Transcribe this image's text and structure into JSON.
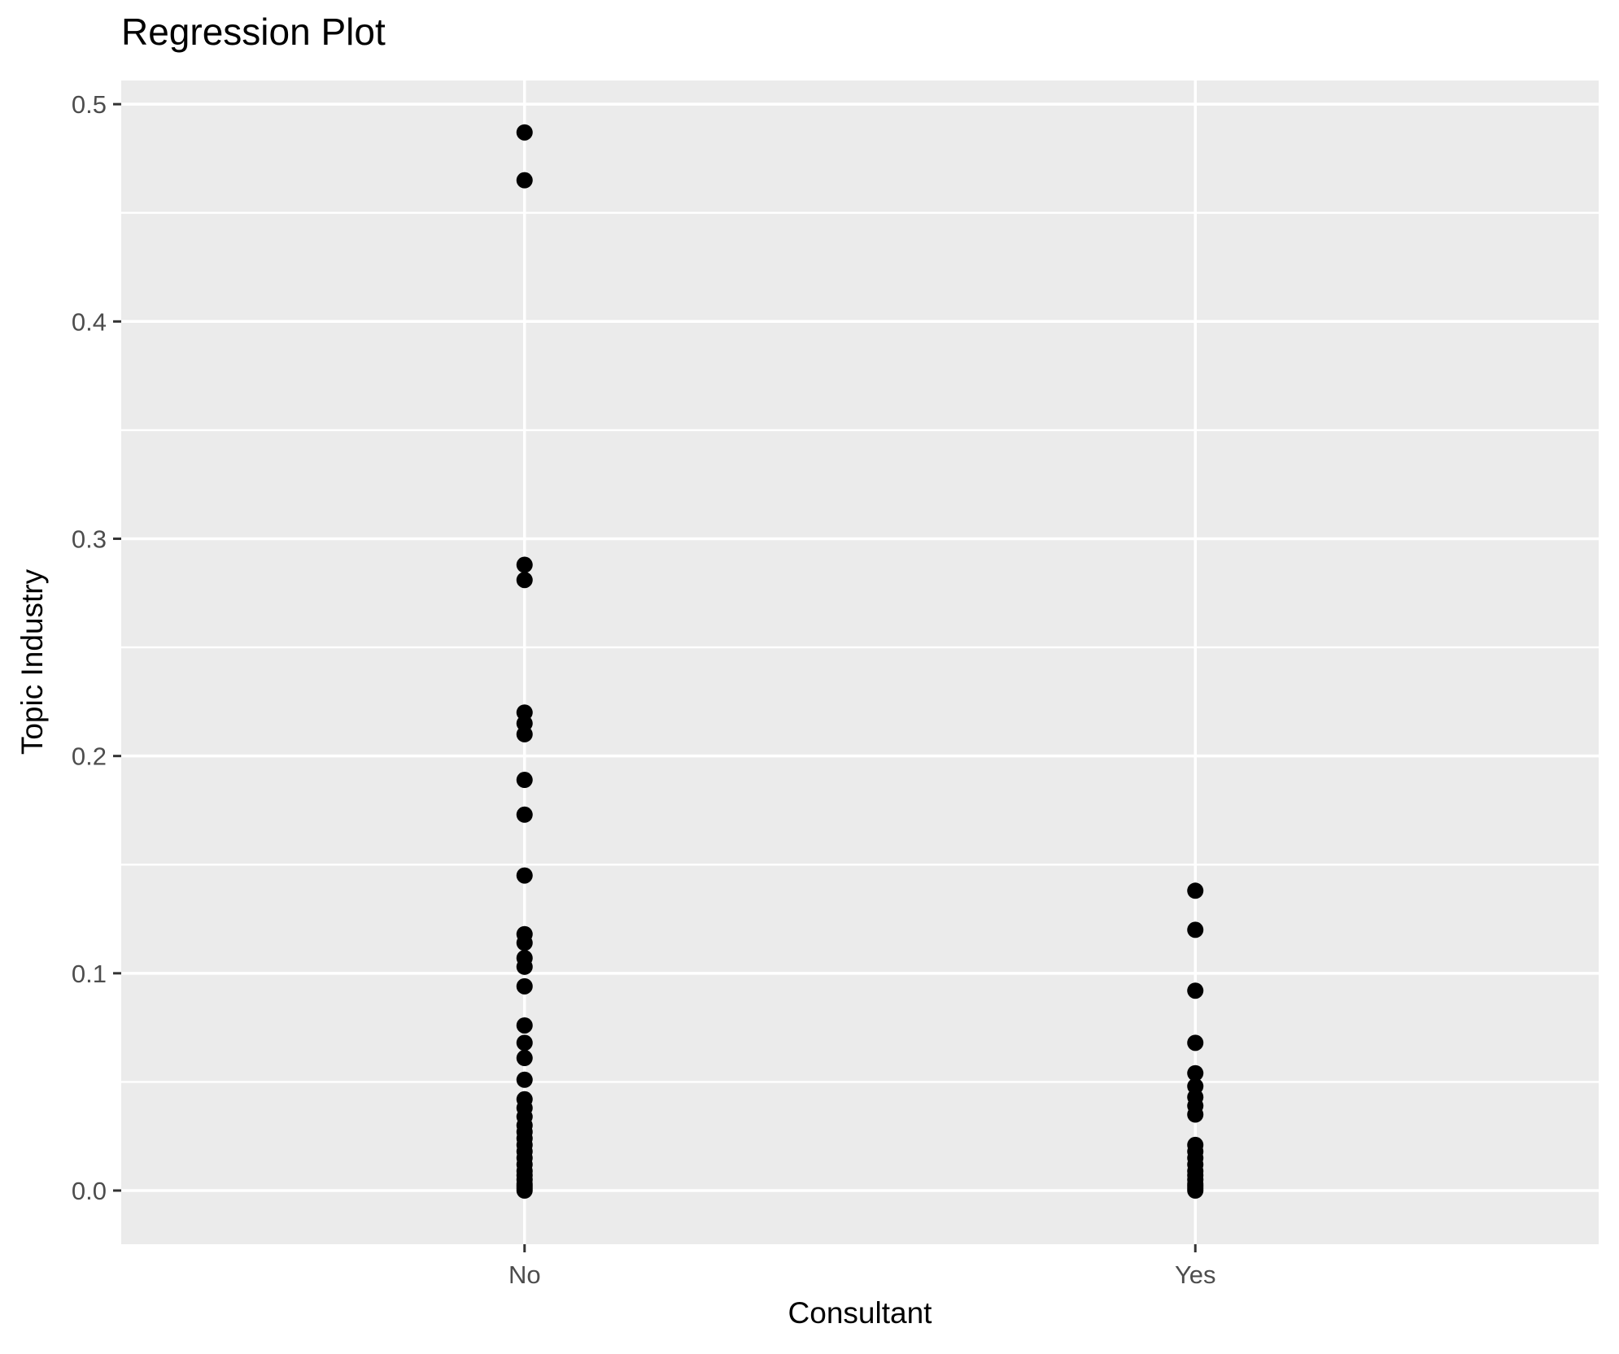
{
  "page": {
    "background": "#FFFFFF"
  },
  "chart_data": {
    "type": "scatter",
    "title": "Regression Plot",
    "xlabel": "Consultant",
    "ylabel": "Topic Industry",
    "categories": [
      "No",
      "Yes"
    ],
    "series": [
      {
        "name": "No",
        "values": [
          0.487,
          0.465,
          0.288,
          0.281,
          0.22,
          0.215,
          0.21,
          0.189,
          0.173,
          0.145,
          0.118,
          0.114,
          0.107,
          0.103,
          0.094,
          0.076,
          0.068,
          0.061,
          0.051,
          0.042,
          0.038,
          0.034,
          0.03,
          0.027,
          0.024,
          0.021,
          0.018,
          0.015,
          0.012,
          0.009,
          0.007,
          0.005,
          0.003,
          0.002,
          0.001,
          0.0
        ]
      },
      {
        "name": "Yes",
        "values": [
          0.138,
          0.12,
          0.092,
          0.068,
          0.054,
          0.048,
          0.043,
          0.039,
          0.035,
          0.021,
          0.018,
          0.015,
          0.012,
          0.009,
          0.007,
          0.005,
          0.003,
          0.002,
          0.001,
          0.0
        ]
      }
    ],
    "y_ticks": {
      "values": [
        0.0,
        0.1,
        0.2,
        0.3,
        0.4,
        0.5
      ],
      "labels": [
        "0.0",
        "0.1",
        "0.2",
        "0.3",
        "0.4",
        "0.5"
      ]
    },
    "y_minor": [
      0.05,
      0.15,
      0.25,
      0.35,
      0.45
    ],
    "ylim": [
      -0.0247,
      0.5109
    ],
    "x_positions": [
      0.273,
      0.727
    ],
    "grid": true,
    "legend": "none",
    "style": {
      "panel_bg": "#EBEBEB",
      "grid_color": "#FFFFFF",
      "point_color": "#000000",
      "tick_label_color": "#4D4D4D",
      "tick_mark_color": "#333333",
      "axis_title_color": "#000000",
      "title_color": "#000000"
    }
  }
}
